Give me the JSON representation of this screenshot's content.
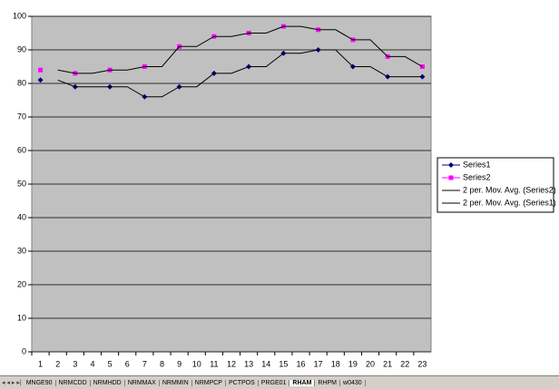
{
  "chart_data": {
    "type": "line",
    "categories": [
      "1",
      "2",
      "3",
      "4",
      "5",
      "6",
      "7",
      "8",
      "9",
      "10",
      "11",
      "12",
      "13",
      "14",
      "15",
      "16",
      "17",
      "18",
      "19",
      "20",
      "21",
      "22",
      "23"
    ],
    "series": [
      {
        "name": "Series1",
        "color": "#000080",
        "marker": "diamond",
        "values": [
          81,
          null,
          79,
          null,
          79,
          null,
          76,
          null,
          79,
          null,
          83,
          null,
          85,
          null,
          89,
          null,
          90,
          null,
          85,
          null,
          82,
          null,
          82
        ]
      },
      {
        "name": "Series2",
        "color": "#ff00ff",
        "marker": "square",
        "values": [
          84,
          null,
          83,
          null,
          84,
          null,
          85,
          null,
          91,
          null,
          94,
          null,
          95,
          null,
          97,
          null,
          96,
          null,
          93,
          null,
          88,
          null,
          85
        ]
      },
      {
        "name": "2 per. Mov. Avg. (Series2)",
        "color": "#000000",
        "marker": "none",
        "values": [
          null,
          84,
          83,
          83,
          84,
          84,
          85,
          85,
          91,
          91,
          94,
          94,
          95,
          95,
          97,
          97,
          96,
          96,
          93,
          93,
          88,
          88,
          85
        ]
      },
      {
        "name": "2 per. Mov. Avg. (Series1)",
        "color": "#000000",
        "marker": "none",
        "values": [
          null,
          81,
          79,
          79,
          79,
          79,
          76,
          76,
          79,
          79,
          83,
          83,
          85,
          85,
          89,
          89,
          90,
          90,
          85,
          85,
          82,
          82,
          82
        ]
      }
    ],
    "ylim": [
      0,
      100
    ],
    "yticks": [
      0,
      10,
      20,
      30,
      40,
      50,
      60,
      70,
      80,
      90,
      100
    ],
    "grid": true,
    "legend": "right"
  },
  "sheet_tabs": [
    "MNGE90",
    "NRMCDD",
    "NRMHDD",
    "NRMMAX",
    "NRMMIN",
    "NRMPCP",
    "PCTPOS",
    "PRGE01",
    "RHAM",
    "RHPM",
    "w0430"
  ],
  "active_tab": 8
}
